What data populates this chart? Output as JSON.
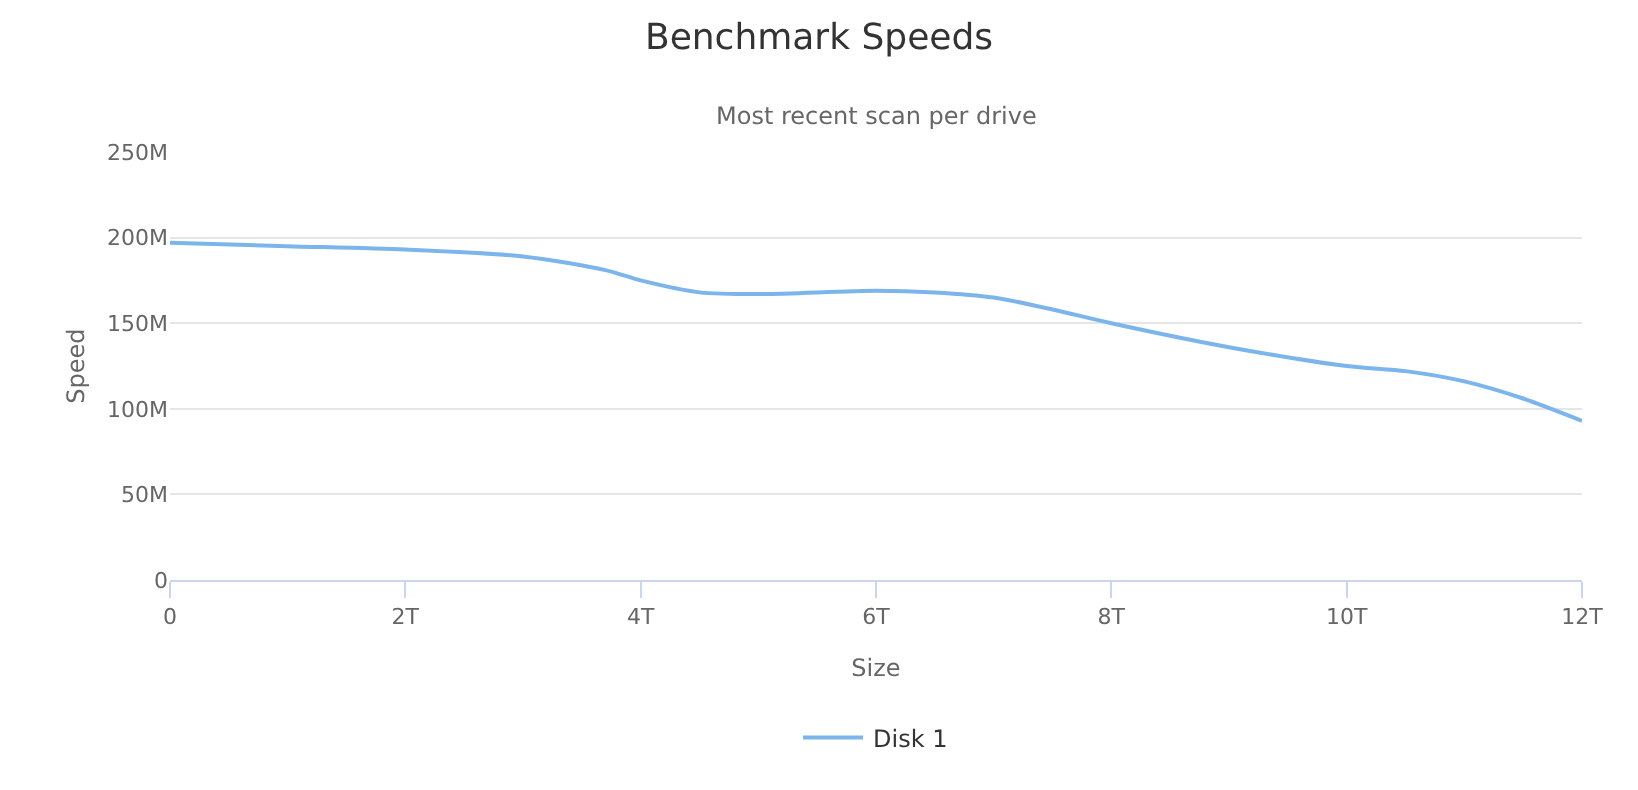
{
  "chart_data": {
    "type": "line",
    "title": "Benchmark Speeds",
    "subtitle": "Most recent scan per drive",
    "xlabel": "Size",
    "ylabel": "Speed",
    "x": [
      0,
      1,
      2,
      3,
      3.7,
      4,
      4.5,
      5,
      6,
      6.5,
      7,
      7.5,
      8,
      9,
      10,
      10.5,
      11,
      11.5,
      12
    ],
    "series": [
      {
        "name": "Disk 1",
        "color": "#7cb5ec",
        "values": [
          197,
          195,
          193,
          189,
          181,
          175,
          168,
          167,
          169,
          168,
          165,
          158,
          150,
          136,
          125,
          122,
          116,
          106,
          93
        ]
      }
    ],
    "xlim": [
      0,
      12
    ],
    "xticks": [
      0,
      {
        "value": 2,
        "label": "2T"
      },
      {
        "value": 4,
        "label": "4T"
      },
      {
        "value": 6,
        "label": "6T"
      },
      {
        "value": 8,
        "label": "8T"
      },
      {
        "value": 10,
        "label": "10T"
      },
      {
        "value": 12,
        "label": "12T"
      }
    ],
    "ylim": [
      0,
      250
    ],
    "yticks": [
      0,
      {
        "value": 50,
        "label": "50M"
      },
      {
        "value": 100,
        "label": "100M"
      },
      {
        "value": 150,
        "label": "150M"
      },
      {
        "value": 200,
        "label": "200M"
      },
      {
        "value": 250,
        "label": "250M"
      }
    ],
    "grid": "y",
    "legend": "bottom",
    "marker": "none",
    "line_style": "solid"
  }
}
